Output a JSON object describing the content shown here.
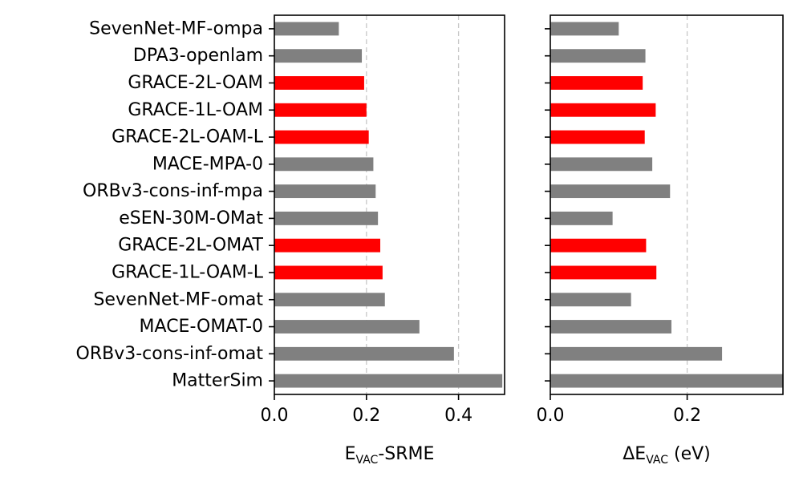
{
  "chart_data": [
    {
      "type": "bar",
      "orientation": "horizontal",
      "title": "",
      "xlabel": {
        "prefix": "E",
        "sub": "VAC",
        "suffix": "-SRME"
      },
      "ylabel": "",
      "xlim": [
        0,
        0.5
      ],
      "grid": "vertical-dashed",
      "xticks": [
        0.0,
        0.2,
        0.4
      ],
      "xtick_labels": [
        "0.0",
        "0.2",
        "0.4"
      ],
      "categories": [
        "SevenNet-MF-ompa",
        "DPA3-openlam",
        "GRACE-2L-OAM",
        "GRACE-1L-OAM",
        "GRACE-2L-OAM-L",
        "MACE-MPA-0",
        "ORBv3-cons-inf-mpa",
        "eSEN-30M-OMat",
        "GRACE-2L-OMAT",
        "GRACE-1L-OAM-L",
        "SevenNet-MF-omat",
        "MACE-OMAT-0",
        "ORBv3-cons-inf-omat",
        "MatterSim"
      ],
      "values": [
        0.14,
        0.19,
        0.195,
        0.2,
        0.205,
        0.215,
        0.22,
        0.225,
        0.23,
        0.235,
        0.24,
        0.315,
        0.39,
        0.495
      ],
      "highlight": [
        false,
        false,
        true,
        true,
        true,
        false,
        false,
        false,
        true,
        true,
        false,
        false,
        false,
        false
      ]
    },
    {
      "type": "bar",
      "orientation": "horizontal",
      "title": "",
      "xlabel": {
        "prefix": "ΔE",
        "sub": "VAC",
        "suffix": " (eV)"
      },
      "ylabel": "",
      "xlim": [
        0,
        0.34
      ],
      "grid": "vertical-dashed",
      "xticks": [
        0.0,
        0.2
      ],
      "xtick_labels": [
        "0.0",
        "0.2"
      ],
      "categories": [
        "SevenNet-MF-ompa",
        "DPA3-openlam",
        "GRACE-2L-OAM",
        "GRACE-1L-OAM",
        "GRACE-2L-OAM-L",
        "MACE-MPA-0",
        "ORBv3-cons-inf-mpa",
        "eSEN-30M-OMat",
        "GRACE-2L-OMAT",
        "GRACE-1L-OAM-L",
        "SevenNet-MF-omat",
        "MACE-OMAT-0",
        "ORBv3-cons-inf-omat",
        "MatterSim"
      ],
      "values": [
        0.1,
        0.139,
        0.135,
        0.154,
        0.138,
        0.149,
        0.175,
        0.091,
        0.14,
        0.155,
        0.118,
        0.177,
        0.251,
        0.34
      ],
      "highlight": [
        false,
        false,
        true,
        true,
        true,
        false,
        false,
        false,
        true,
        true,
        false,
        false,
        false,
        false
      ]
    }
  ],
  "colors": {
    "highlight": "#ff0000",
    "default": "#808080",
    "grid": "#c8c8c8"
  }
}
